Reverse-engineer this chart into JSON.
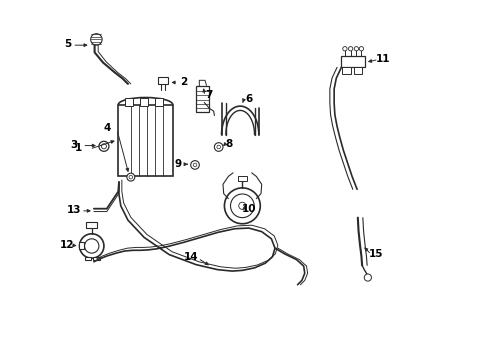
{
  "background_color": "#ffffff",
  "line_color": "#2a2a2a",
  "label_color": "#000000",
  "figsize": [
    4.89,
    3.6
  ],
  "dpi": 100,
  "labels": [
    "1",
    "2",
    "3",
    "4",
    "5",
    "6",
    "7",
    "8",
    "9",
    "10",
    "11",
    "12",
    "13",
    "14",
    "15"
  ]
}
